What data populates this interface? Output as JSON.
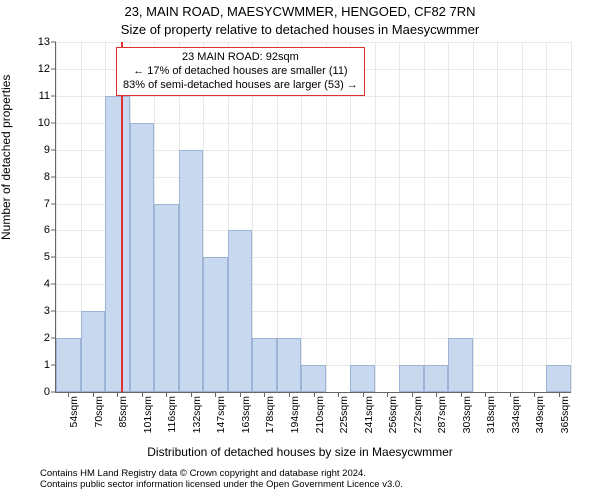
{
  "title_main": "23, MAIN ROAD, MAESYCWMMER, HENGOED, CF82 7RN",
  "title_sub": "Size of property relative to detached houses in Maesycwmmer",
  "ylabel": "Number of detached properties",
  "xlabel": "Distribution of detached houses by size in Maesycwmmer",
  "footer_line1": "Contains HM Land Registry data © Crown copyright and database right 2024.",
  "footer_line2": "Contains public sector information licensed under the Open Government Licence v3.0.",
  "chart": {
    "type": "bar",
    "background_color": "#ffffff",
    "grid_color": "#e8e8e8",
    "axis_color": "#666666",
    "bar_face_color": "#c8d8ef",
    "bar_edge_color": "#9db4d6",
    "bar_edge_width": 1,
    "marker_color": "#e03030",
    "annot_border_color": "#e03030",
    "ylim": [
      0,
      13
    ],
    "yticks": [
      0,
      1,
      2,
      3,
      4,
      5,
      6,
      7,
      8,
      9,
      10,
      11,
      12,
      13
    ],
    "x_start": 50,
    "x_step": 15.5,
    "n_bars": 21,
    "xtick_labels": [
      "54sqm",
      "70sqm",
      "85sqm",
      "101sqm",
      "116sqm",
      "132sqm",
      "147sqm",
      "163sqm",
      "178sqm",
      "194sqm",
      "210sqm",
      "225sqm",
      "241sqm",
      "256sqm",
      "272sqm",
      "287sqm",
      "303sqm",
      "318sqm",
      "334sqm",
      "349sqm",
      "365sqm"
    ],
    "values": [
      2,
      3,
      11,
      10,
      7,
      9,
      5,
      6,
      2,
      2,
      1,
      0,
      1,
      0,
      1,
      1,
      2,
      0,
      0,
      0,
      1
    ],
    "marker_x": 92,
    "annot_lines": [
      "23 MAIN ROAD: 92sqm",
      "← 17% of detached houses are smaller (11)",
      "83% of semi-detached houses are larger (53) →"
    ],
    "title_fontsize": 13,
    "label_fontsize": 12,
    "tick_fontsize": 11,
    "xtick_fontsize": 10.5,
    "footer_fontsize": 9.5,
    "bar_width_ratio": 1.0
  }
}
